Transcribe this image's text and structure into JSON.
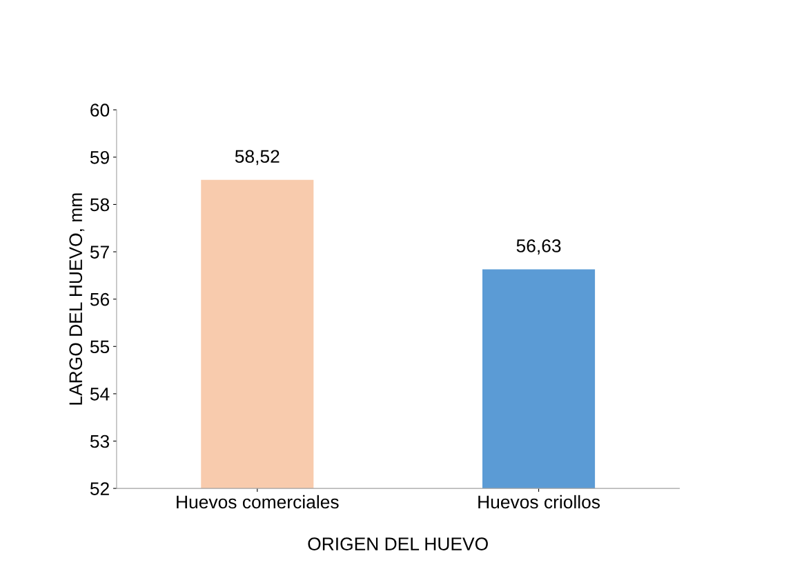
{
  "chart_data": {
    "type": "bar",
    "xlabel": "ORIGEN DEL HUEVO",
    "ylabel": "LARGO DEL HUEVO, mm",
    "categories": [
      "Huevos comerciales",
      "Huevos criollos"
    ],
    "values": [
      58.52,
      56.63
    ],
    "colors": [
      "#f8cbad",
      "#5b9bd5"
    ],
    "value_labels": [
      "58,52",
      "56,63"
    ],
    "ylim": [
      52,
      60
    ],
    "yticks": [
      52,
      53,
      54,
      55,
      56,
      57,
      58,
      59,
      60
    ],
    "grid": false
  }
}
